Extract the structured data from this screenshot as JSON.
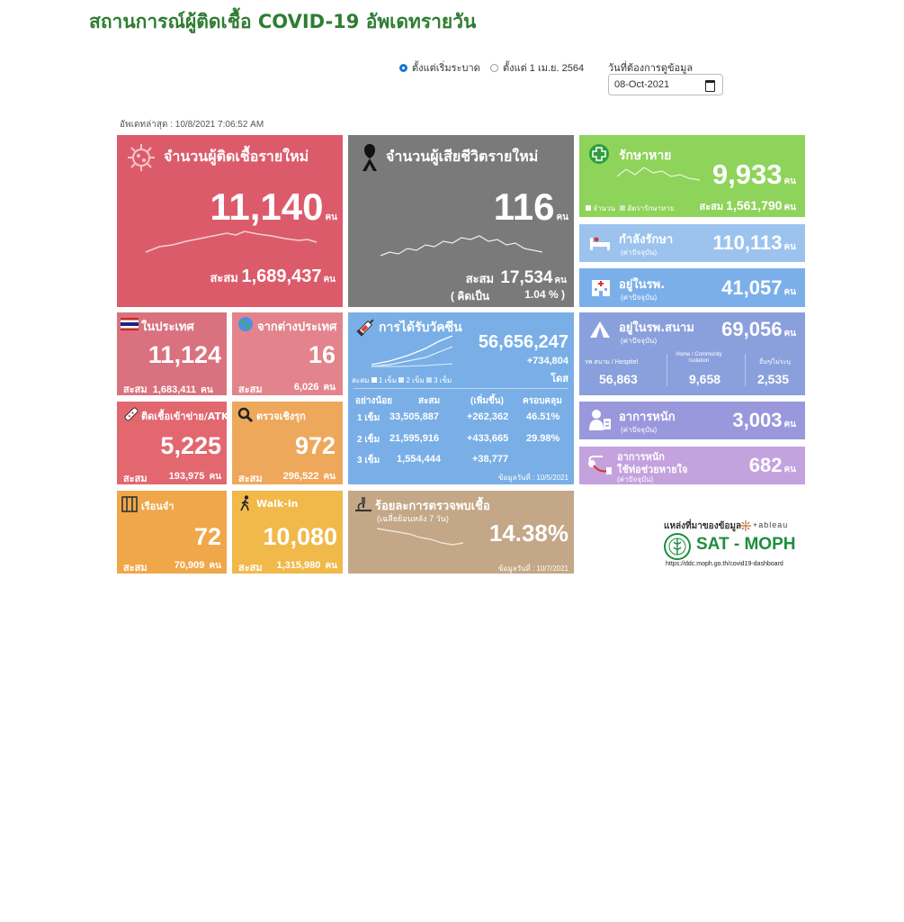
{
  "title": "สถานการณ์ผู้ติดเชื้อ COVID-19 อัพเดทรายวัน",
  "filters": {
    "option_all": "ตั้งแต่เริ่มระบาด",
    "option_apr": "ตั้งแต่ 1 เม.ย. 2564",
    "selected": "option_all",
    "date_label": "วันที่ต้องการดูข้อมูล",
    "date_value": "08-Oct-2021"
  },
  "last_updated": "อัพเดทล่าสุด : 10/8/2021 7:06:52 AM",
  "unit": "คน",
  "cumulative_label": "สะสม",
  "new_cases": {
    "title": "จำนวนผู้ติดเชื้อรายใหม่",
    "value": "11,140",
    "cumulative": "1,689,437"
  },
  "deaths": {
    "title": "จำนวนผู้เสียชีวิตรายใหม่",
    "value": "116",
    "cumulative": "17,534",
    "rate_label": "( คิดเป็น",
    "rate": "1.04 % )"
  },
  "recovered": {
    "title": "รักษาหาย",
    "value": "9,933",
    "legend_count": "จำนวน",
    "legend_rate": "อัตรารักษาหาย",
    "cumulative": "1,561,790"
  },
  "in_treatment": {
    "title": "กำลังรักษา",
    "note": "(ค่าปัจจุบัน)",
    "value": "110,113"
  },
  "hospital": {
    "title": "อยู่ในรพ.",
    "note": "(ค่าปัจจุบัน)",
    "value": "41,057"
  },
  "domestic": {
    "title": "ในประเทศ",
    "value": "11,124",
    "cumulative": "1,683,411"
  },
  "abroad": {
    "title": "จากต่างประเทศ",
    "value": "16",
    "cumulative": "6,026"
  },
  "vaccine": {
    "title": "การได้รับวัคซีน",
    "total": "56,656,247",
    "increase": "+734,804",
    "dose_unit": "โดส",
    "legend_prefix": "สะสม",
    "legend_1": "1 เข็ม",
    "legend_2": "2 เข็ม",
    "legend_3": "3 เข็ม",
    "headers": [
      "อย่างน้อย",
      "สะสม",
      "(เพิ่มขึ้น)",
      "ครอบคลุม"
    ],
    "rows": [
      {
        "dose": "1 เข็ม",
        "total": "33,505,887",
        "increase": "+262,362",
        "coverage": "46.51%"
      },
      {
        "dose": "2 เข็ม",
        "total": "21,595,916",
        "increase": "+433,665",
        "coverage": "29.98%"
      },
      {
        "dose": "3 เข็ม",
        "total": "1,554,444",
        "increase": "+38,777",
        "coverage": ""
      }
    ],
    "data_date": "ข้อมูลวันที่ : 10/5/2021"
  },
  "field_hospital": {
    "title": "อยู่ในรพ.สนาม",
    "note": "(ค่าปัจจุบัน)",
    "value": "69,056",
    "col1_label": "รพ.สนาม / Hospitel",
    "col1_value": "56,863",
    "col2_label": "Home / Community Isolation",
    "col2_value": "9,658",
    "col3_label": "อื่นๆ/ไม่ระบุ",
    "col3_value": "2,535"
  },
  "atk": {
    "title": "ติดเชื้อเข้าข่าย/ATK",
    "value": "5,225",
    "cumulative": "193,975"
  },
  "proactive": {
    "title": "ตรวจเชิงรุก",
    "value": "972",
    "cumulative": "296,522"
  },
  "severe": {
    "title": "อาการหนัก",
    "note": "(ค่าปัจจุบัน)",
    "value": "3,003"
  },
  "ventilator": {
    "title_1": "อาการหนัก",
    "title_2": "ใช้ท่อช่วยหายใจ",
    "note": "(ค่าปัจจุบัน)",
    "value": "682"
  },
  "prison": {
    "title": "เรือนจำ",
    "value": "72",
    "cumulative": "70,909"
  },
  "walkin": {
    "title": "Walk-in",
    "value": "10,080",
    "cumulative": "1,315,980"
  },
  "positivity": {
    "title": "ร้อยละการตรวจพบเชื้อ",
    "subtitle": "(เฉลี่ยย้อนหลัง 7 วัน)",
    "value": "14.38%",
    "data_date": "ข้อมูลวันที่ : 10/7/2021"
  },
  "source": {
    "label": "แหล่งที่มาของข้อมูล",
    "tableau": "+ableau",
    "org": "SAT - MOPH",
    "url": "https://ddc.moph.go.th/covid19-dashboard"
  },
  "colors": {
    "new_cases": "#dc5b6b",
    "deaths": "#7a7a7a",
    "recovered": "#8ed35a",
    "in_treatment": "#9cc3ee",
    "hospital": "#7bafea",
    "domestic": "#d9727e",
    "abroad": "#e3848d",
    "vaccine": "#79afe6",
    "field_hospital": "#8aa0dc",
    "atk": "#e2676f",
    "proactive": "#eea85c",
    "severe": "#9a98dc",
    "ventilator": "#c4a2de",
    "prison": "#f0a74a",
    "walkin": "#f1b84a",
    "positivity": "#c3a786",
    "title": "#2e7d32"
  }
}
